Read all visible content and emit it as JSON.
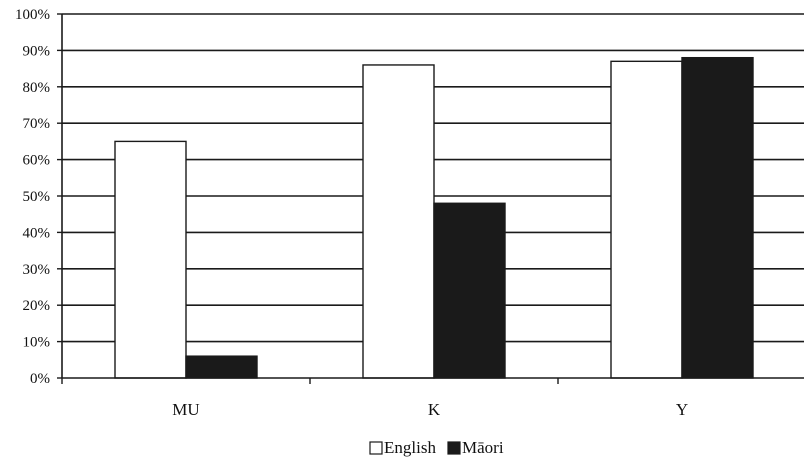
{
  "chart_data": {
    "type": "bar",
    "categories": [
      "MU",
      "K",
      "Y"
    ],
    "series": [
      {
        "name": "English",
        "values": [
          65,
          86,
          87
        ],
        "color": "#ffffff"
      },
      {
        "name": "Māori",
        "values": [
          6,
          48,
          88
        ],
        "color": "#1a1a1a"
      }
    ],
    "ylim": [
      0,
      100
    ],
    "yticks": [
      0,
      10,
      20,
      30,
      40,
      50,
      60,
      70,
      80,
      90,
      100
    ],
    "ytick_labels": [
      "0%",
      "10%",
      "20%",
      "30%",
      "40%",
      "50%",
      "60%",
      "70%",
      "80%",
      "90%",
      "100%"
    ],
    "grid": true,
    "legend_position": "bottom-center",
    "title": "",
    "xlabel": "",
    "ylabel": ""
  }
}
